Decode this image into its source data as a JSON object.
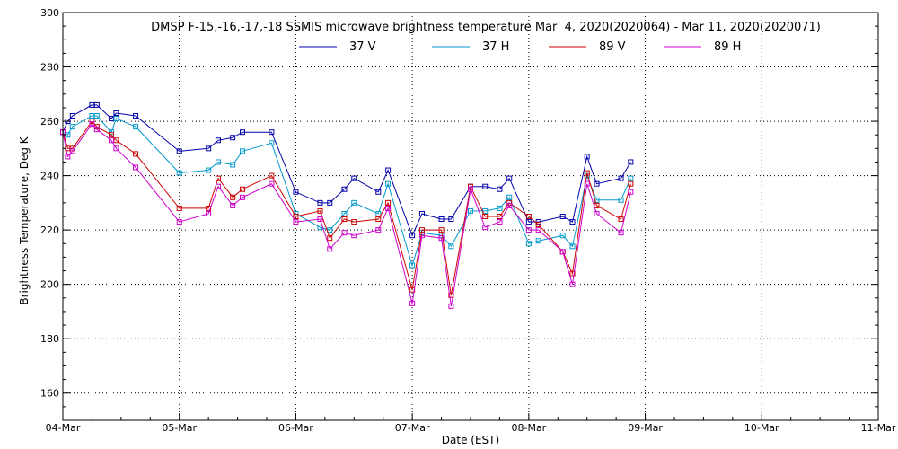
{
  "chart_data": {
    "type": "line",
    "title": "DMSP F-15,-16,-17,-18 SSMIS microwave brightness temperature Mar  4, 2020(2020064) - Mar 11, 2020(2020071)",
    "xlabel": "Date (EST)",
    "ylabel": "Brightness Temperature, Deg K",
    "xlim": [
      "2020-03-04T00:00",
      "2020-03-11T00:00"
    ],
    "ylim": [
      150,
      300
    ],
    "x_ticks": [
      "04-Mar",
      "05-Mar",
      "06-Mar",
      "07-Mar",
      "08-Mar",
      "09-Mar",
      "10-Mar",
      "11-Mar"
    ],
    "y_ticks": [
      160,
      180,
      200,
      220,
      240,
      260,
      280,
      300
    ],
    "grid": true,
    "legend_position": "top-center",
    "series": [
      {
        "name": "37 V",
        "color": "#0000aa",
        "points": [
          [
            "2020-03-04T00:00",
            256
          ],
          [
            "2020-03-04T01:00",
            260
          ],
          [
            "2020-03-04T02:00",
            262
          ],
          [
            "2020-03-04T06:00",
            266
          ],
          [
            "2020-03-04T07:00",
            266
          ],
          [
            "2020-03-04T10:00",
            261
          ],
          [
            "2020-03-04T11:00",
            263
          ],
          [
            "2020-03-04T15:00",
            262
          ],
          [
            "2020-03-05T00:00",
            249
          ],
          [
            "2020-03-05T06:00",
            250
          ],
          [
            "2020-03-05T08:00",
            253
          ],
          [
            "2020-03-05T11:00",
            254
          ],
          [
            "2020-03-05T13:00",
            256
          ],
          [
            "2020-03-05T19:00",
            256
          ],
          [
            "2020-03-06T00:00",
            234
          ],
          [
            "2020-03-06T05:00",
            230
          ],
          [
            "2020-03-06T07:00",
            230
          ],
          [
            "2020-03-06T10:00",
            235
          ],
          [
            "2020-03-06T12:00",
            239
          ],
          [
            "2020-03-06T17:00",
            234
          ],
          [
            "2020-03-06T19:00",
            242
          ],
          [
            "2020-03-07T00:00",
            218
          ],
          [
            "2020-03-07T02:00",
            226
          ],
          [
            "2020-03-07T06:00",
            224
          ],
          [
            "2020-03-07T08:00",
            224
          ],
          [
            "2020-03-07T12:00",
            236
          ],
          [
            "2020-03-07T15:00",
            236
          ],
          [
            "2020-03-07T18:00",
            235
          ],
          [
            "2020-03-07T20:00",
            239
          ],
          [
            "2020-03-08T00:00",
            223
          ],
          [
            "2020-03-08T02:00",
            223
          ],
          [
            "2020-03-08T07:00",
            225
          ],
          [
            "2020-03-08T09:00",
            223
          ],
          [
            "2020-03-08T12:00",
            247
          ],
          [
            "2020-03-08T14:00",
            237
          ],
          [
            "2020-03-08T19:00",
            239
          ],
          [
            "2020-03-08T21:00",
            245
          ]
        ]
      },
      {
        "name": "37 H",
        "color": "#0099cc",
        "points": [
          [
            "2020-03-04T00:00",
            256
          ],
          [
            "2020-03-04T01:00",
            255
          ],
          [
            "2020-03-04T02:00",
            258
          ],
          [
            "2020-03-04T06:00",
            262
          ],
          [
            "2020-03-04T07:00",
            262
          ],
          [
            "2020-03-04T10:00",
            256
          ],
          [
            "2020-03-04T11:00",
            261
          ],
          [
            "2020-03-04T15:00",
            258
          ],
          [
            "2020-03-05T00:00",
            241
          ],
          [
            "2020-03-05T06:00",
            242
          ],
          [
            "2020-03-05T08:00",
            245
          ],
          [
            "2020-03-05T11:00",
            244
          ],
          [
            "2020-03-05T13:00",
            249
          ],
          [
            "2020-03-05T19:00",
            252
          ],
          [
            "2020-03-06T00:00",
            226
          ],
          [
            "2020-03-06T05:00",
            221
          ],
          [
            "2020-03-06T07:00",
            220
          ],
          [
            "2020-03-06T10:00",
            226
          ],
          [
            "2020-03-06T12:00",
            230
          ],
          [
            "2020-03-06T17:00",
            226
          ],
          [
            "2020-03-06T19:00",
            237
          ],
          [
            "2020-03-07T00:00",
            207
          ],
          [
            "2020-03-07T02:00",
            219
          ],
          [
            "2020-03-07T06:00",
            218
          ],
          [
            "2020-03-07T08:00",
            214
          ],
          [
            "2020-03-07T12:00",
            227
          ],
          [
            "2020-03-07T15:00",
            227
          ],
          [
            "2020-03-07T18:00",
            228
          ],
          [
            "2020-03-07T20:00",
            232
          ],
          [
            "2020-03-08T00:00",
            215
          ],
          [
            "2020-03-08T02:00",
            216
          ],
          [
            "2020-03-08T07:00",
            218
          ],
          [
            "2020-03-08T09:00",
            214
          ],
          [
            "2020-03-08T12:00",
            240
          ],
          [
            "2020-03-08T14:00",
            231
          ],
          [
            "2020-03-08T19:00",
            231
          ],
          [
            "2020-03-08T21:00",
            239
          ]
        ]
      },
      {
        "name": "89 V",
        "color": "#cc0000",
        "points": [
          [
            "2020-03-04T00:00",
            256
          ],
          [
            "2020-03-04T01:00",
            250
          ],
          [
            "2020-03-04T02:00",
            250
          ],
          [
            "2020-03-04T06:00",
            260
          ],
          [
            "2020-03-04T07:00",
            258
          ],
          [
            "2020-03-04T10:00",
            255
          ],
          [
            "2020-03-04T11:00",
            253
          ],
          [
            "2020-03-04T15:00",
            248
          ],
          [
            "2020-03-05T00:00",
            228
          ],
          [
            "2020-03-05T06:00",
            228
          ],
          [
            "2020-03-05T08:00",
            239
          ],
          [
            "2020-03-05T11:00",
            232
          ],
          [
            "2020-03-05T13:00",
            235
          ],
          [
            "2020-03-05T19:00",
            240
          ],
          [
            "2020-03-06T00:00",
            225
          ],
          [
            "2020-03-06T05:00",
            227
          ],
          [
            "2020-03-06T07:00",
            217
          ],
          [
            "2020-03-06T10:00",
            224
          ],
          [
            "2020-03-06T12:00",
            223
          ],
          [
            "2020-03-06T17:00",
            224
          ],
          [
            "2020-03-06T19:00",
            230
          ],
          [
            "2020-03-07T00:00",
            198
          ],
          [
            "2020-03-07T02:00",
            220
          ],
          [
            "2020-03-07T06:00",
            220
          ],
          [
            "2020-03-07T08:00",
            196
          ],
          [
            "2020-03-07T12:00",
            236
          ],
          [
            "2020-03-07T15:00",
            225
          ],
          [
            "2020-03-07T18:00",
            225
          ],
          [
            "2020-03-07T20:00",
            230
          ],
          [
            "2020-03-08T00:00",
            225
          ],
          [
            "2020-03-08T02:00",
            222
          ],
          [
            "2020-03-08T07:00",
            212
          ],
          [
            "2020-03-08T09:00",
            204
          ],
          [
            "2020-03-08T12:00",
            241
          ],
          [
            "2020-03-08T14:00",
            229
          ],
          [
            "2020-03-08T19:00",
            224
          ],
          [
            "2020-03-08T21:00",
            237
          ]
        ]
      },
      {
        "name": "89 H",
        "color": "#cc00cc",
        "points": [
          [
            "2020-03-04T00:00",
            256
          ],
          [
            "2020-03-04T01:00",
            247
          ],
          [
            "2020-03-04T02:00",
            249
          ],
          [
            "2020-03-04T06:00",
            259
          ],
          [
            "2020-03-04T07:00",
            257
          ],
          [
            "2020-03-04T10:00",
            253
          ],
          [
            "2020-03-04T11:00",
            250
          ],
          [
            "2020-03-04T15:00",
            243
          ],
          [
            "2020-03-05T00:00",
            223
          ],
          [
            "2020-03-05T06:00",
            226
          ],
          [
            "2020-03-05T08:00",
            236
          ],
          [
            "2020-03-05T11:00",
            229
          ],
          [
            "2020-03-05T13:00",
            232
          ],
          [
            "2020-03-05T19:00",
            237
          ],
          [
            "2020-03-06T00:00",
            223
          ],
          [
            "2020-03-06T05:00",
            224
          ],
          [
            "2020-03-06T07:00",
            213
          ],
          [
            "2020-03-06T10:00",
            219
          ],
          [
            "2020-03-06T12:00",
            218
          ],
          [
            "2020-03-06T17:00",
            220
          ],
          [
            "2020-03-06T19:00",
            228
          ],
          [
            "2020-03-07T00:00",
            193
          ],
          [
            "2020-03-07T02:00",
            218
          ],
          [
            "2020-03-07T06:00",
            217
          ],
          [
            "2020-03-07T08:00",
            192
          ],
          [
            "2020-03-07T12:00",
            235
          ],
          [
            "2020-03-07T15:00",
            221
          ],
          [
            "2020-03-07T18:00",
            223
          ],
          [
            "2020-03-07T20:00",
            229
          ],
          [
            "2020-03-08T00:00",
            220
          ],
          [
            "2020-03-08T02:00",
            220
          ],
          [
            "2020-03-08T07:00",
            212
          ],
          [
            "2020-03-08T09:00",
            200
          ],
          [
            "2020-03-08T12:00",
            237
          ],
          [
            "2020-03-08T14:00",
            226
          ],
          [
            "2020-03-08T19:00",
            219
          ],
          [
            "2020-03-08T21:00",
            234
          ]
        ]
      }
    ]
  }
}
